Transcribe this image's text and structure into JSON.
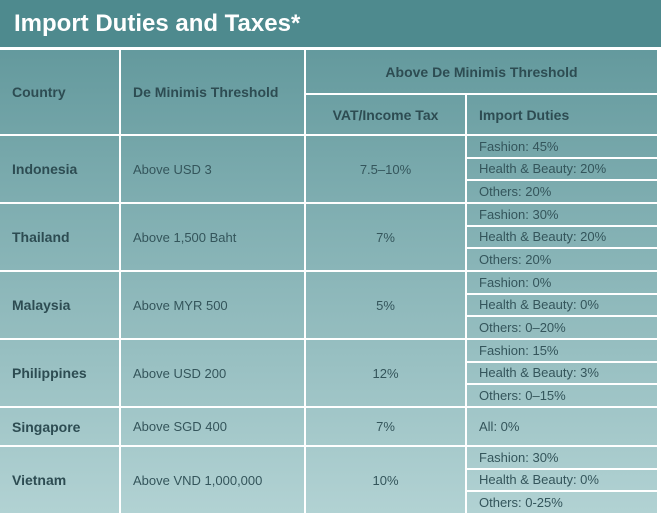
{
  "header": {
    "title": "Import Duties and Taxes*"
  },
  "table": {
    "columns": {
      "country": "Country",
      "threshold": "De Minimis Threshold",
      "above": "Above De Minimis Threshold",
      "vat": "VAT/Income Tax",
      "duties": "Import Duties"
    },
    "rows": [
      {
        "country": "Indonesia",
        "threshold": "Above USD 3",
        "vat": "7.5–10%",
        "duties": [
          "Fashion: 45%",
          "Health & Beauty: 20%",
          "Others: 20%"
        ]
      },
      {
        "country": "Thailand",
        "threshold": "Above 1,500 Baht",
        "vat": "7%",
        "duties": [
          "Fashion: 30%",
          "Health & Beauty: 20%",
          "Others: 20%"
        ]
      },
      {
        "country": "Malaysia",
        "threshold": "Above MYR 500",
        "vat": "5%",
        "duties": [
          "Fashion: 0%",
          "Health & Beauty: 0%",
          "Others: 0–20%"
        ]
      },
      {
        "country": "Philippines",
        "threshold": "Above USD 200",
        "vat": "12%",
        "duties": [
          "Fashion: 15%",
          "Health & Beauty: 3%",
          "Others: 0–15%"
        ]
      },
      {
        "country": "Singapore",
        "threshold": "Above SGD 400",
        "vat": "7%",
        "duties": [
          "All: 0%"
        ]
      },
      {
        "country": "Vietnam",
        "threshold": "Above VND 1,000,000",
        "vat": "10%",
        "duties": [
          "Fashion: 30%",
          "Health & Beauty: 0%",
          "Others: 0-25%"
        ]
      }
    ]
  }
}
